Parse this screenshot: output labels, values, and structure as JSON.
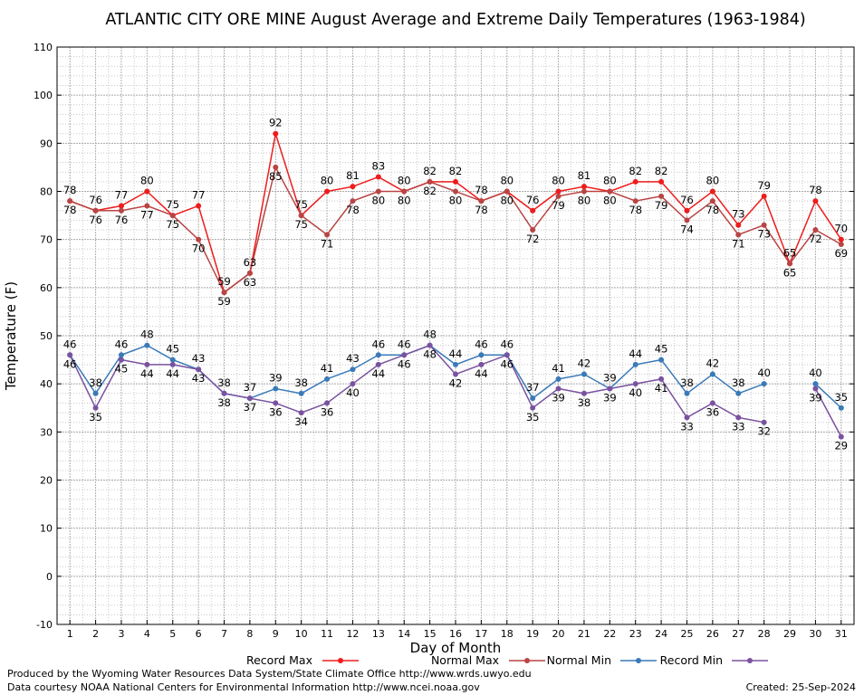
{
  "chart_data": {
    "type": "line",
    "title": "ATLANTIC CITY ORE MINE August Average and Extreme Daily Temperatures (1963-1984)",
    "xlabel": "Day of Month",
    "ylabel": "Temperature (F)",
    "ylim": [
      -10,
      110
    ],
    "yticks": [
      -10,
      0,
      10,
      20,
      30,
      40,
      50,
      60,
      70,
      80,
      90,
      100,
      110
    ],
    "xlim": [
      1,
      31
    ],
    "x": [
      1,
      2,
      3,
      4,
      5,
      6,
      7,
      8,
      9,
      10,
      11,
      12,
      13,
      14,
      15,
      16,
      17,
      18,
      19,
      20,
      21,
      22,
      23,
      24,
      25,
      26,
      27,
      28,
      29,
      30,
      31
    ],
    "grid": true,
    "legend_position": "bottom",
    "series": [
      {
        "name": "Record Max",
        "color": "#ee1c1c",
        "values": [
          78,
          76,
          77,
          80,
          75,
          77,
          59,
          63,
          92,
          75,
          80,
          81,
          83,
          80,
          82,
          82,
          78,
          80,
          76,
          80,
          81,
          80,
          82,
          82,
          76,
          80,
          73,
          79,
          65,
          78,
          70
        ]
      },
      {
        "name": "Normal Max",
        "color": "#b94444",
        "values": [
          78,
          76,
          76,
          77,
          75,
          70,
          59,
          63,
          85,
          75,
          71,
          78,
          80,
          80,
          82,
          80,
          78,
          80,
          72,
          79,
          80,
          80,
          78,
          79,
          74,
          78,
          71,
          73,
          65,
          72,
          69
        ]
      },
      {
        "name": "Normal Min",
        "color": "#3a7ab8",
        "values": [
          46,
          38,
          46,
          48,
          45,
          43,
          38,
          37,
          39,
          38,
          41,
          43,
          46,
          46,
          48,
          44,
          46,
          46,
          37,
          41,
          42,
          39,
          44,
          45,
          38,
          42,
          38,
          40,
          null,
          40,
          35
        ]
      },
      {
        "name": "Record Min",
        "color": "#7a52a0",
        "values": [
          46,
          35,
          45,
          44,
          44,
          43,
          38,
          37,
          36,
          34,
          36,
          40,
          44,
          46,
          48,
          42,
          44,
          46,
          35,
          39,
          38,
          39,
          40,
          41,
          33,
          36,
          33,
          32,
          null,
          39,
          29
        ]
      }
    ]
  },
  "footer": {
    "producer": "Produced by the Wyoming Water Resources Data System/State Climate Office http://www.wrds.uwyo.edu",
    "courtesy": "Data courtesy NOAA National Centers for Environmental Information http://www.ncei.noaa.gov",
    "created": "Created:  25-Sep-2024"
  }
}
